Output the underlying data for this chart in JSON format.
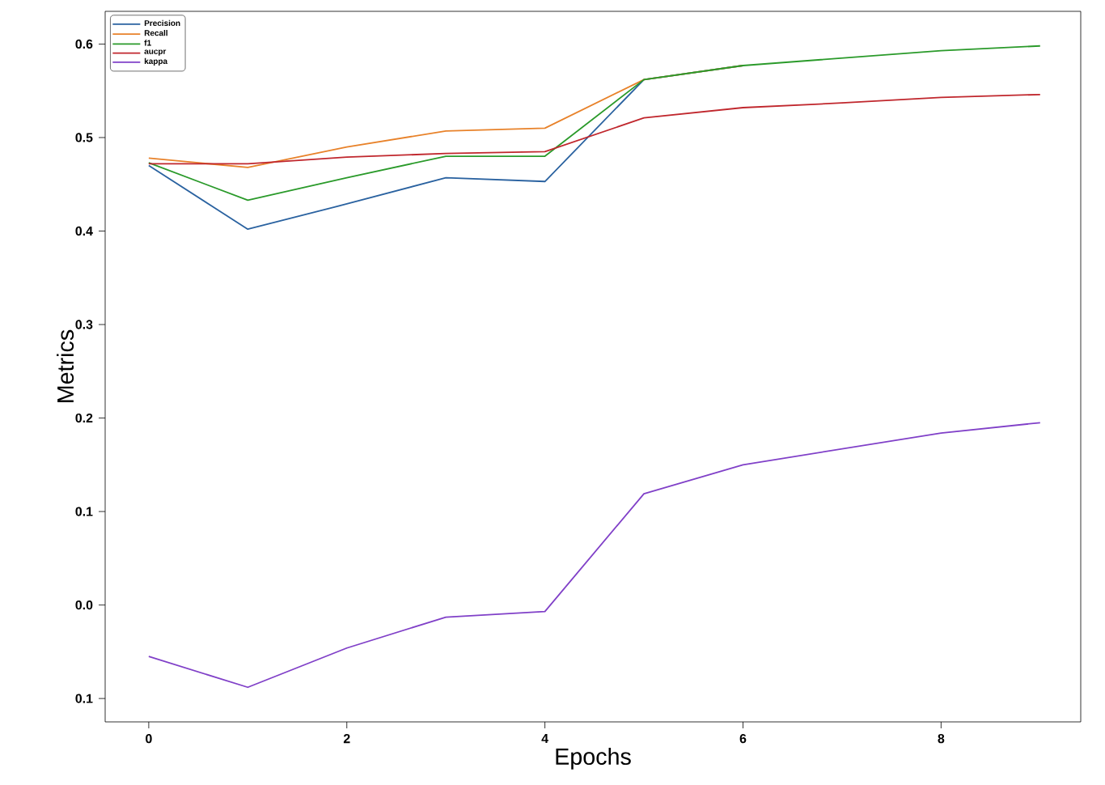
{
  "chart_data": {
    "type": "line",
    "xlabel": "Epochs",
    "ylabel": "Metrics",
    "x": [
      0,
      1,
      2,
      3,
      4,
      5,
      6,
      7,
      8,
      9
    ],
    "xlim": [
      -0.44,
      9.41
    ],
    "ylim": [
      -0.125,
      0.635
    ],
    "xticks": [
      0,
      2,
      4,
      6,
      8
    ],
    "yticks": [
      {
        "value": -0.1,
        "label": "0.1"
      },
      {
        "value": 0,
        "label": "0.0"
      },
      0.1,
      0.2,
      0.3,
      0.4,
      0.5,
      0.6
    ],
    "legend": "top left",
    "grid": false,
    "marker": "none",
    "line_style": "solid",
    "series": [
      {
        "name": "Precision",
        "color": "#2a62a0",
        "values": [
          0.47,
          0.402,
          0.429,
          0.457,
          0.453,
          0.562,
          0.577,
          null,
          null,
          null
        ]
      },
      {
        "name": "Recall",
        "color": "#e8822a",
        "values": [
          0.478,
          0.468,
          0.49,
          0.507,
          0.51,
          0.562,
          0.577,
          null,
          null,
          null
        ]
      },
      {
        "name": "f1",
        "color": "#2a9a2a",
        "values": [
          0.473,
          0.433,
          0.457,
          0.48,
          0.48,
          0.562,
          0.577,
          0.585,
          0.593,
          0.598
        ]
      },
      {
        "name": "aucpr",
        "color": "#c0272d",
        "values": [
          0.472,
          0.472,
          0.479,
          0.483,
          0.485,
          0.521,
          0.532,
          0.537,
          0.543,
          0.546
        ]
      },
      {
        "name": "kappa",
        "color": "#8040c8",
        "values": [
          -0.055,
          -0.088,
          -0.046,
          -0.013,
          -0.007,
          0.119,
          0.15,
          0.167,
          0.184,
          0.195
        ]
      }
    ]
  }
}
